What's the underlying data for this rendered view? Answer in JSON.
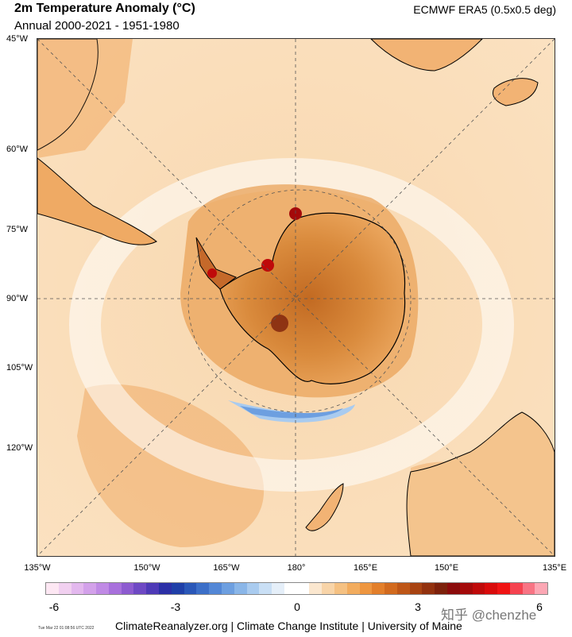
{
  "header": {
    "title": "2m Temperature Anomaly (°C)",
    "subtitle": "Annual 2000-2021 - 1951-1980",
    "source": "ECMWF ERA5 (0.5x0.5 deg)"
  },
  "map": {
    "latitude_labels": [
      "45°W",
      "60°W",
      "75°W",
      "90°W",
      "105°W",
      "120°W"
    ],
    "longitude_labels": [
      "135°W",
      "150°W",
      "165°W",
      "180°",
      "165°E",
      "150°E",
      "135°E"
    ]
  },
  "colorbar": {
    "ticks": [
      "-6",
      "-3",
      "0",
      "3",
      "6"
    ],
    "colors": [
      "#fde7f3",
      "#f1d0f0",
      "#e3b8ee",
      "#d3a1ea",
      "#c08ae5",
      "#a870dc",
      "#8d5bd0",
      "#6e49c4",
      "#4e3ab7",
      "#2b2fa6",
      "#1f3fa8",
      "#2a57b8",
      "#3c6fc8",
      "#5387d6",
      "#6d9fe0",
      "#8ab6e8",
      "#a9cbef",
      "#c9dff5",
      "#e5eff9",
      "#ffffff",
      "#ffffff",
      "#fbe7cf",
      "#f8d4a8",
      "#f5c182",
      "#f2ac5e",
      "#ee963f",
      "#e37f2a",
      "#d26a1e",
      "#be5617",
      "#a84312",
      "#92310e",
      "#7d210b",
      "#8b0b0b",
      "#a40a0a",
      "#bf0a0a",
      "#d90b0b",
      "#f01313",
      "#f5424f",
      "#f87484",
      "#fca7b4"
    ]
  },
  "footer": {
    "credit": "ClimateReanalyzer.org | Climate Change Institute | University of Maine",
    "timestamp": "Tue Mar 22 01:08:56 UTC 2022",
    "watermark": "知乎 @chenzhe"
  }
}
